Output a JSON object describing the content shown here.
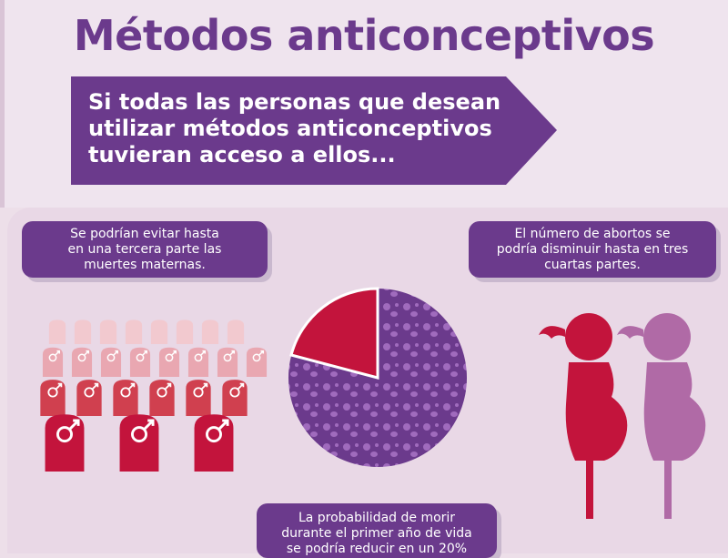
{
  "title": "Métodos anticonceptivos",
  "banner": {
    "lines": [
      "Si todas las personas que desean",
      "utilizar métodos anticonceptivos",
      "tuvieran acceso a ellos..."
    ]
  },
  "left_fact": {
    "lines": [
      "Se podrían evitar hasta",
      "en una tercera parte las",
      "muertes maternas."
    ]
  },
  "right_fact": {
    "lines": [
      "El número de abortos se",
      "podría disminuir hasta en tres",
      "cuartas partes."
    ]
  },
  "bottom_fact": {
    "lines": [
      "La probabilidad de morir",
      "durante el primer año de vida",
      "se podría reducir en un 20%"
    ]
  },
  "colors": {
    "purple": "#6b3a8c",
    "crimson": "#c3143c",
    "pink_light": "#e9a7b1",
    "mauve": "#b06aa6"
  },
  "icons": {
    "tombstone": "tombstone-male-icon",
    "pie": "babies-pie-icon",
    "pregnant": "pregnant-woman-icon"
  }
}
